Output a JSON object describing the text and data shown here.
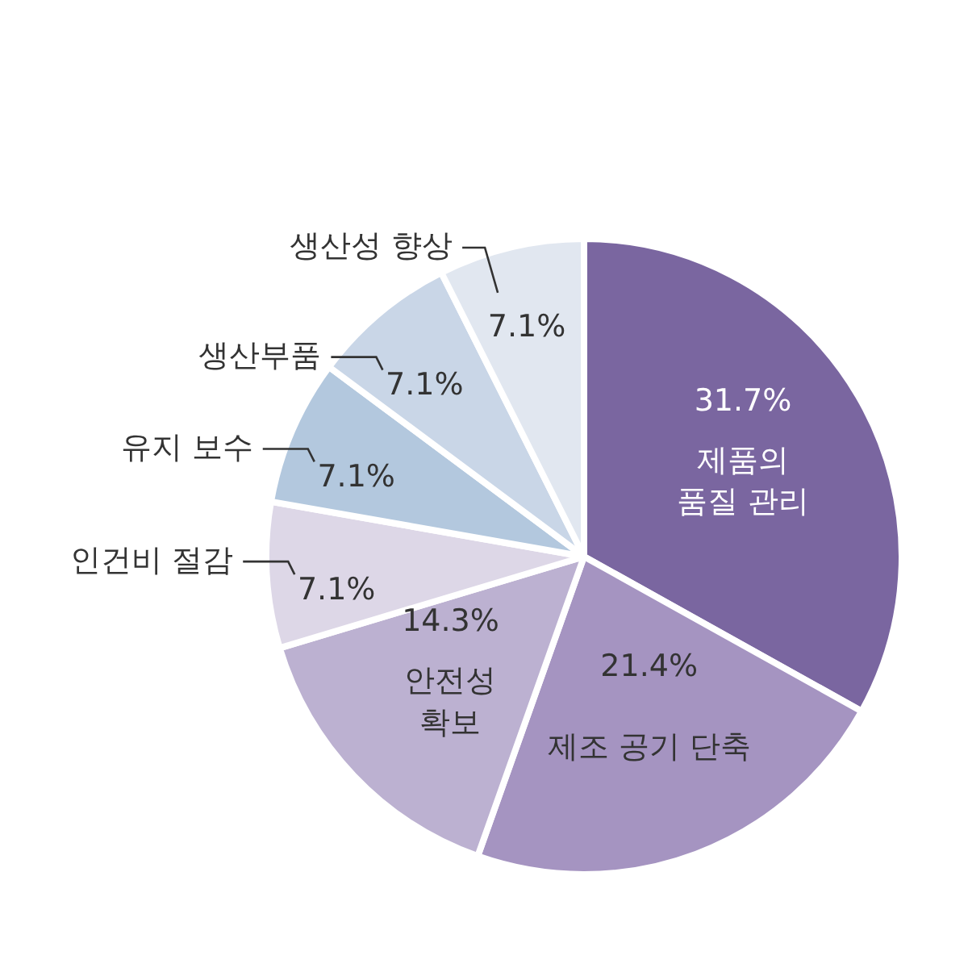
{
  "chart_data": {
    "type": "pie",
    "categories": [
      "제품의\n품질 관리",
      "제조 공기 단축",
      "안전성\n확보",
      "인건비 절감",
      "유지 보수",
      "생산부품",
      "생산성 향상"
    ],
    "values": [
      31.7,
      21.4,
      14.3,
      7.1,
      7.1,
      7.1,
      7.1
    ],
    "colors": [
      "#7a66a0",
      "#a594c1",
      "#bcb1d1",
      "#ddd7e7",
      "#b3c8de",
      "#c9d6e7",
      "#e1e7f0"
    ],
    "value_labels": [
      "31.7%",
      "21.4%",
      "14.3%",
      "7.1%",
      "7.1%",
      "7.1%",
      "7.1%"
    ]
  }
}
